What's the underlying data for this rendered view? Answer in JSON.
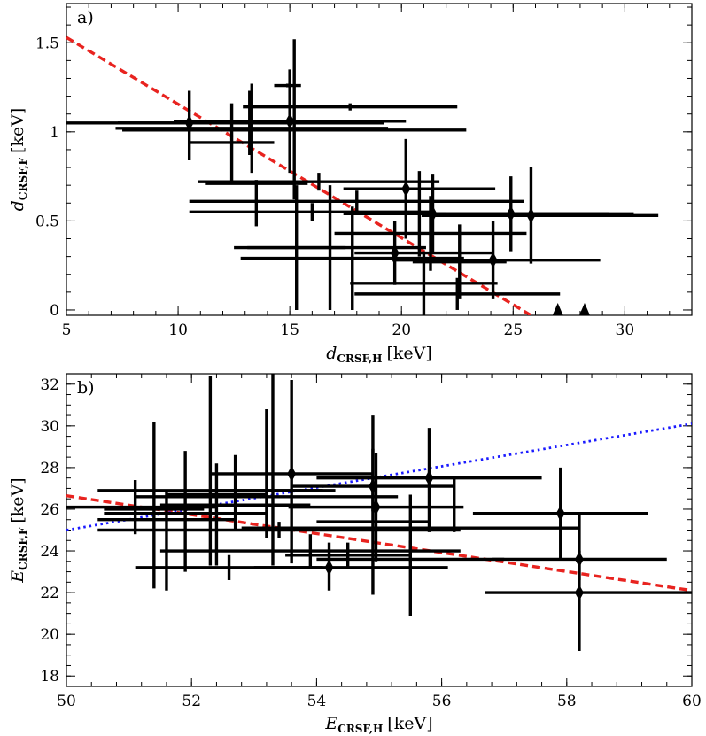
{
  "chart_data": [
    {
      "type": "scatter",
      "panel_label": "a)",
      "xlabel": "d",
      "xlabel_sub": "CRSF,H",
      "xlabel_unit": "[keV]",
      "ylabel": "d",
      "ylabel_sub": "CRSF,F",
      "ylabel_unit": "[keV]",
      "xlim": [
        5,
        33
      ],
      "ylim": [
        -0.03,
        1.72
      ],
      "xticks": [
        5,
        10,
        15,
        20,
        25,
        30
      ],
      "yticks": [
        0,
        0.5,
        1,
        1.5
      ],
      "ytick_labels": [
        "0",
        "0.5",
        "1",
        "1.5"
      ],
      "points": [
        {
          "x": 10.5,
          "y": 1.05,
          "xerr": [
            5.9,
            5.9
          ],
          "yerr": [
            0.21,
            0.18
          ]
        },
        {
          "x": 12.4,
          "y": 0.94,
          "xerr": [
            1.9,
            1.9
          ],
          "yerr": [
            0.23,
            0.22
          ]
        },
        {
          "x": 13.3,
          "y": 1.02,
          "xerr": [
            6.1,
            6.1
          ],
          "yerr": [
            0.25,
            0.25
          ]
        },
        {
          "x": 13.2,
          "y": 1.05,
          "xerr": [
            5.9,
            6.0
          ],
          "yerr": [
            0.18,
            0.18
          ]
        },
        {
          "x": 15.0,
          "y": 1.06,
          "xerr": [
            5.2,
            5.2
          ],
          "yerr": [
            0.29,
            0.29
          ]
        },
        {
          "x": 15.2,
          "y": 1.01,
          "xerr": [
            7.7,
            7.7
          ],
          "yerr": [
            0.39,
            0.51
          ]
        },
        {
          "x": 14.9,
          "y": 1.26,
          "xerr": [
            0.6,
            0.6
          ],
          "yerr": [
            0.01,
            0.01
          ]
        },
        {
          "x": 13.5,
          "y": 0.71,
          "xerr": [
            2.3,
            2.3
          ],
          "yerr": [
            0.24,
            0.02
          ]
        },
        {
          "x": 17.7,
          "y": 1.14,
          "xerr": [
            4.8,
            4.8
          ],
          "yerr": [
            0.02,
            0.02
          ]
        },
        {
          "x": 16.3,
          "y": 0.72,
          "xerr": [
            5.4,
            5.4
          ],
          "yerr": [
            0.05,
            0.05
          ]
        },
        {
          "x": 16.0,
          "y": 0.55,
          "xerr": [
            5.5,
            5.5
          ],
          "yerr": [
            0.05,
            0.05
          ]
        },
        {
          "x": 18.0,
          "y": 0.61,
          "xerr": [
            7.5,
            7.5
          ],
          "yerr": [
            0.06,
            0.06
          ]
        },
        {
          "x": 16.8,
          "y": 0.35,
          "xerr": [
            4.3,
            4.3
          ],
          "yerr": [
            0.35,
            0.35
          ]
        },
        {
          "x": 15.3,
          "y": 0.35,
          "xerr": [
            2.2,
            2.2
          ],
          "yerr": [
            0.35,
            0.35
          ]
        },
        {
          "x": 17.8,
          "y": 0.29,
          "xerr": [
            5.0,
            5.0
          ],
          "yerr": [
            0.29,
            0.29
          ]
        },
        {
          "x": 20.2,
          "y": 0.68,
          "xerr": [
            2.8,
            4.0
          ],
          "yerr": [
            0.28,
            0.28
          ]
        },
        {
          "x": 20.8,
          "y": 0.54,
          "xerr": [
            1.2,
            1.2
          ],
          "yerr": [
            0.24,
            0.24
          ]
        },
        {
          "x": 21.4,
          "y": 0.54,
          "xerr": [
            4.0,
            9.0
          ],
          "yerr": [
            0.22,
            0.22
          ]
        },
        {
          "x": 21.3,
          "y": 0.43,
          "xerr": [
            4.3,
            4.3
          ],
          "yerr": [
            0.21,
            0.21
          ]
        },
        {
          "x": 19.7,
          "y": 0.32,
          "xerr": [
            1.8,
            4.4
          ],
          "yerr": [
            0.18,
            0.18
          ]
        },
        {
          "x": 22.6,
          "y": 0.27,
          "xerr": [
            2.1,
            2.1
          ],
          "yerr": [
            0.21,
            0.21
          ]
        },
        {
          "x": 24.1,
          "y": 0.28,
          "xerr": [
            4.5,
            4.8
          ],
          "yerr": [
            0.22,
            0.22
          ]
        },
        {
          "x": 24.9,
          "y": 0.54,
          "xerr": [
            4.4,
            4.4
          ],
          "yerr": [
            0.21,
            0.21
          ]
        },
        {
          "x": 25.8,
          "y": 0.53,
          "xerr": [
            4.9,
            5.7
          ],
          "yerr": [
            0.27,
            0.27
          ]
        },
        {
          "x": 21.0,
          "y": 0.15,
          "xerr": [
            3.3,
            3.3
          ],
          "yerr": [
            0.18,
            0.18
          ]
        },
        {
          "x": 22.5,
          "y": 0.09,
          "xerr": [
            4.6,
            4.6
          ],
          "yerr": [
            0.09,
            0.09
          ]
        },
        {
          "x": 27.0,
          "y": -0.01,
          "xerr": [
            0,
            0
          ],
          "yerr": [
            0,
            0
          ]
        },
        {
          "x": 28.2,
          "y": -0.01,
          "xerr": [
            0,
            0
          ],
          "yerr": [
            0,
            0
          ]
        }
      ],
      "diamond_points": [
        0,
        4,
        15,
        17,
        19,
        21,
        22,
        23
      ],
      "triangle_points": [
        26,
        27
      ],
      "fit_lines": [
        {
          "style": "red-dashed",
          "x": [
            5,
            25.8
          ],
          "y": [
            1.53,
            -0.03
          ]
        }
      ]
    },
    {
      "type": "scatter",
      "panel_label": "b)",
      "xlabel": "E",
      "xlabel_sub": "CRSF,H",
      "xlabel_unit": "[keV]",
      "ylabel": "E",
      "ylabel_sub": "CRSF,F",
      "ylabel_unit": "[keV]",
      "xlim": [
        50,
        60
      ],
      "ylim": [
        17.5,
        32.5
      ],
      "xticks": [
        50,
        52,
        54,
        56,
        58,
        60
      ],
      "yticks": [
        18,
        20,
        22,
        24,
        26,
        28,
        30,
        32
      ],
      "points": [
        {
          "x": 51.1,
          "y": 26.1,
          "xerr": [
            1.3,
            1.3
          ],
          "yerr": [
            1.3,
            1.3
          ]
        },
        {
          "x": 51.4,
          "y": 26.0,
          "xerr": [
            0.8,
            0.8
          ],
          "yerr": [
            3.8,
            4.2
          ]
        },
        {
          "x": 51.6,
          "y": 25.5,
          "xerr": [
            1.1,
            1.1
          ],
          "yerr": [
            3.4,
            1.4
          ]
        },
        {
          "x": 51.9,
          "y": 25.8,
          "xerr": [
            1.3,
            1.3
          ],
          "yerr": [
            2.8,
            3.0
          ]
        },
        {
          "x": 52.3,
          "y": 26.9,
          "xerr": [
            1.8,
            1.8
          ],
          "yerr": [
            3.6,
            5.5
          ]
        },
        {
          "x": 52.4,
          "y": 26.7,
          "xerr": [
            0.8,
            0.8
          ],
          "yerr": [
            3.4,
            1.5
          ]
        },
        {
          "x": 52.7,
          "y": 26.2,
          "xerr": [
            1.2,
            1.2
          ],
          "yerr": [
            1.2,
            2.4
          ]
        },
        {
          "x": 53.2,
          "y": 26.6,
          "xerr": [
            2.1,
            2.1
          ],
          "yerr": [
            2.0,
            4.2
          ]
        },
        {
          "x": 53.3,
          "y": 26.9,
          "xerr": [
            1.0,
            1.0
          ],
          "yerr": [
            3.6,
            6.1
          ]
        },
        {
          "x": 53.6,
          "y": 27.7,
          "xerr": [
            1.3,
            1.3
          ],
          "yerr": [
            4.3,
            4.5
          ]
        },
        {
          "x": 53.4,
          "y": 25.0,
          "xerr": [
            2.9,
            2.9
          ],
          "yerr": [
            0.4,
            0.4
          ]
        },
        {
          "x": 52.6,
          "y": 23.2,
          "xerr": [
            1.5,
            1.5
          ],
          "yerr": [
            0.6,
            0.6
          ]
        },
        {
          "x": 53.9,
          "y": 24.0,
          "xerr": [
            2.4,
            2.4
          ],
          "yerr": [
            0.8,
            0.8
          ]
        },
        {
          "x": 54.2,
          "y": 23.2,
          "xerr": [
            1.2,
            1.9
          ],
          "yerr": [
            1.1,
            1.2
          ]
        },
        {
          "x": 54.5,
          "y": 23.8,
          "xerr": [
            1.0,
            1.0
          ],
          "yerr": [
            0.6,
            0.6
          ]
        },
        {
          "x": 54.9,
          "y": 25.4,
          "xerr": [
            0.9,
            0.9
          ],
          "yerr": [
            3.5,
            3.5
          ]
        },
        {
          "x": 54.9,
          "y": 27.1,
          "xerr": [
            1.3,
            1.3
          ],
          "yerr": [
            1.2,
            3.4
          ]
        },
        {
          "x": 54.95,
          "y": 26.1,
          "xerr": [
            1.4,
            1.4
          ],
          "yerr": [
            2.6,
            2.6
          ]
        },
        {
          "x": 55.5,
          "y": 23.6,
          "xerr": [
            1.5,
            1.5
          ],
          "yerr": [
            2.7,
            0.9
          ]
        },
        {
          "x": 55.8,
          "y": 27.5,
          "xerr": [
            1.8,
            1.8
          ],
          "yerr": [
            2.6,
            2.4
          ]
        },
        {
          "x": 55.5,
          "y": 25.1,
          "xerr": [
            2.7,
            2.7
          ],
          "yerr": [
            1.6,
            1.6
          ]
        },
        {
          "x": 56.2,
          "y": 26.2,
          "xerr": [
            0.0,
            0.0
          ],
          "yerr": [
            1.3,
            1.3
          ]
        },
        {
          "x": 57.9,
          "y": 25.8,
          "xerr": [
            1.4,
            1.4
          ],
          "yerr": [
            2.2,
            2.2
          ]
        },
        {
          "x": 58.2,
          "y": 23.6,
          "xerr": [
            1.4,
            1.4
          ],
          "yerr": [
            1.0,
            2.2
          ]
        },
        {
          "x": 58.2,
          "y": 22.0,
          "xerr": [
            1.5,
            1.8
          ],
          "yerr": [
            2.8,
            2.0
          ]
        }
      ],
      "diamond_points": [
        9,
        13,
        16,
        17,
        19,
        22,
        23,
        24
      ],
      "fit_lines": [
        {
          "style": "red-dashed",
          "x": [
            50,
            60
          ],
          "y": [
            26.65,
            22.1
          ]
        },
        {
          "style": "blue-dotted",
          "x": [
            50,
            60
          ],
          "y": [
            25.0,
            30.1
          ]
        }
      ]
    }
  ]
}
